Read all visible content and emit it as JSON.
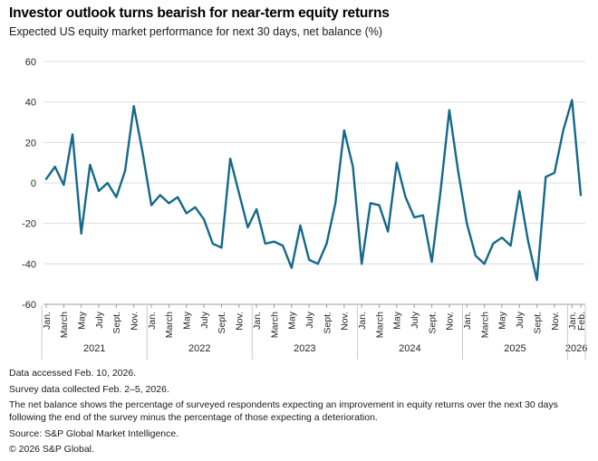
{
  "header": {
    "title": "Investor outlook turns bearish for near-term equity returns",
    "subtitle": "Expected US equity market performance for next 30 days, net balance (%)"
  },
  "chart_data": {
    "type": "line",
    "title": "Investor outlook turns bearish for near-term equity returns",
    "subtitle": "Expected US equity market performance for next 30 days, net balance (%)",
    "ylabel": "Net balance (%)",
    "xlabel": "",
    "ylim": [
      -60,
      60
    ],
    "y_ticks": [
      60,
      40,
      20,
      0,
      -20,
      -40,
      -60
    ],
    "grid": true,
    "legend": "none",
    "line_color": "#14698a",
    "grid_color": "#dcdcdc",
    "axis_color": "#9b9b9b",
    "separator_color": "#c9c9c9",
    "text_color": "#262626",
    "x": {
      "frequency": "monthly",
      "start": "Jan. 2021",
      "end": "Feb. 2026",
      "years": [
        {
          "label": "2021",
          "months": 12
        },
        {
          "label": "2022",
          "months": 12
        },
        {
          "label": "2023",
          "months": 12
        },
        {
          "label": "2024",
          "months": 12
        },
        {
          "label": "2025",
          "months": 12
        },
        {
          "label": "2026",
          "months": 2
        }
      ]
    },
    "month_tick_labels": [
      "Jan.",
      "March",
      "May",
      "July",
      "Sept.",
      "Nov."
    ],
    "final_year_tick_labels": [
      "Jan.",
      "Feb."
    ],
    "series": [
      {
        "name": "Expected US equity market performance, net balance (%)",
        "values": [
          2,
          8,
          -1,
          24,
          -25,
          9,
          -4,
          0,
          -7,
          6,
          38,
          15,
          -11,
          -6,
          -10,
          -7,
          -15,
          -12,
          -18,
          -30,
          -32,
          12,
          -5,
          -22,
          -13,
          -30,
          -29,
          -31,
          -42,
          -21,
          -38,
          -40,
          -30,
          -10,
          26,
          8,
          -40,
          -10,
          -11,
          -24,
          10,
          -7,
          -17,
          -16,
          -39,
          -4,
          36,
          6,
          -20,
          -36,
          -40,
          -30,
          -27,
          -31,
          -4,
          -29,
          -48,
          3,
          5,
          26,
          41,
          -6
        ]
      }
    ]
  },
  "footer": {
    "line1": "Data accessed Feb. 10, 2026.",
    "line2": "Survey data collected Feb. 2–5, 2026.",
    "note": "The net balance shows the percentage of surveyed respondents expecting an improvement in equity returns over the next 30 days following the end of the survey minus the percentage of those expecting a deterioration.",
    "source": "Source: S&P Global Market Intelligence.",
    "copyright": "© 2026 S&P Global."
  }
}
